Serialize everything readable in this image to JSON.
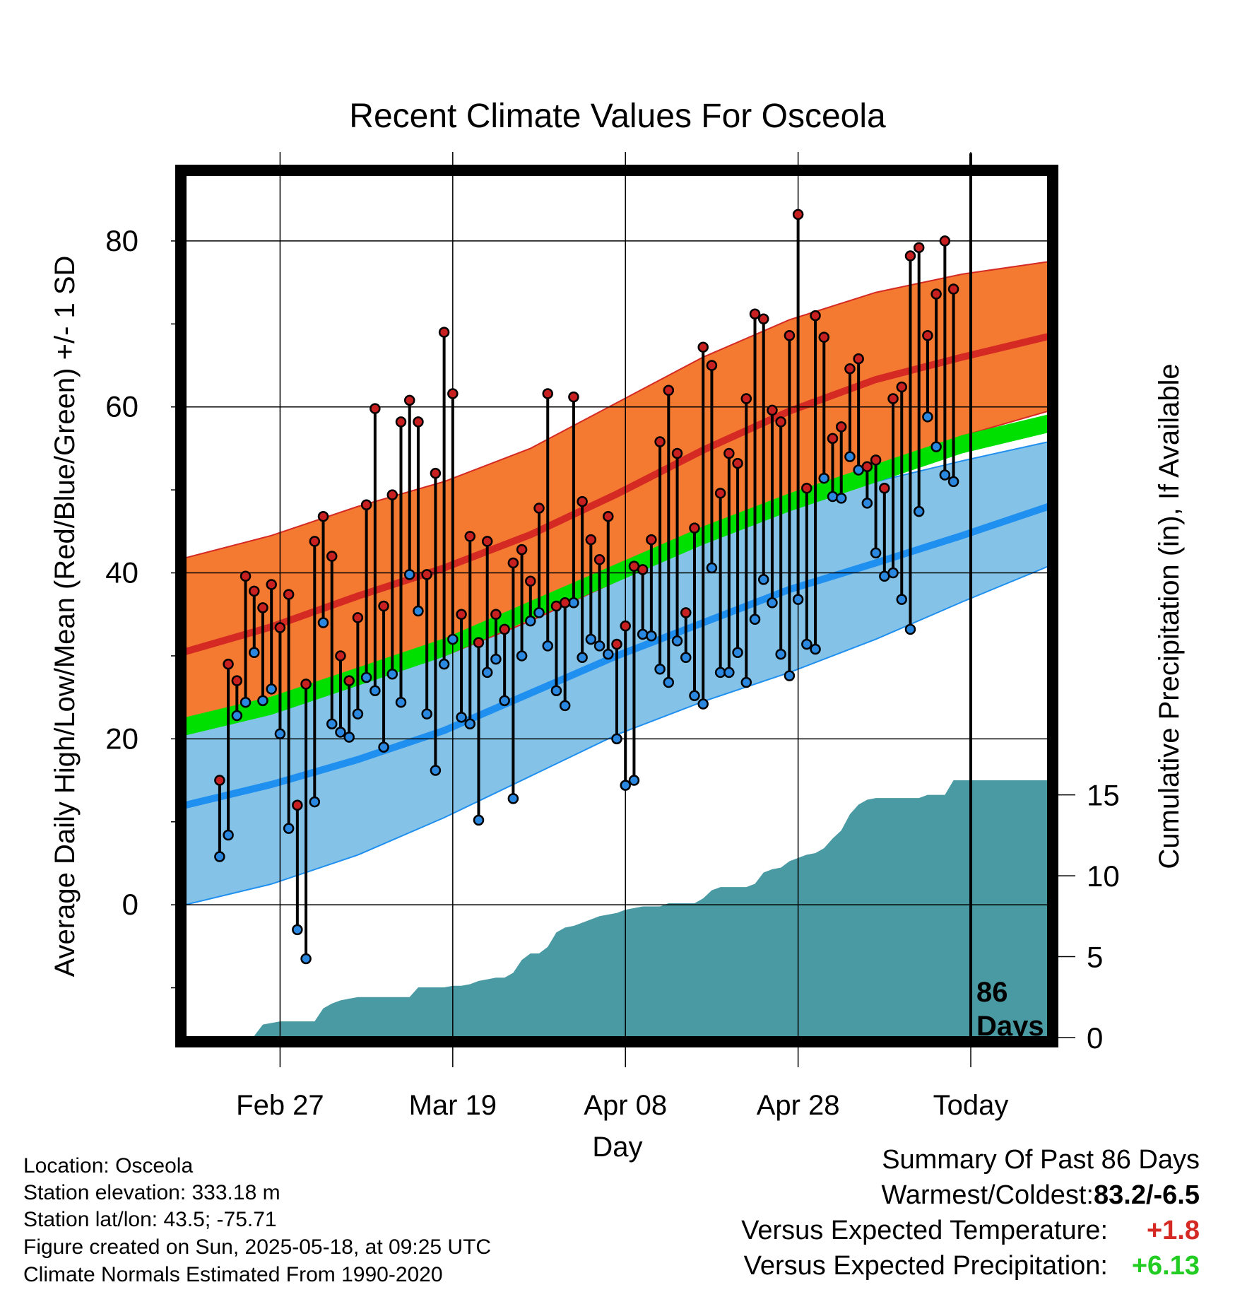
{
  "title": "Recent Climate Values For Osceola",
  "colors": {
    "high_band": "#f47a32",
    "high_band_edge": "#d42a23",
    "high_mean_line": "#d42a23",
    "low_band": "#84c2e7",
    "low_band_edge": "#1f8ff0",
    "low_mean_line": "#1f8ff0",
    "mean_band": "#00e000",
    "overlap_band": "#9a1414",
    "precip_area": "#4a9aa4",
    "high_marker": "#c82020",
    "low_marker": "#2a88e0",
    "warmest_coldest_value": "#000000",
    "temp_departure": "#d42a23",
    "precip_departure": "#22cc22"
  },
  "chart_data": {
    "type": "line",
    "title": "Recent Climate Values For Osceola",
    "xlabel": "Day",
    "ylabel": "Average Daily High/Low/Mean (Red/Blue/Green) +/- 1 SD",
    "y2label": "Cumulative Precipitation (in), If Available",
    "x_ticks": [
      "Feb 27",
      "Mar 19",
      "Apr 08",
      "Apr 28",
      "Today"
    ],
    "x_tick_days": [
      11,
      31,
      51,
      71,
      91
    ],
    "y_ticks": [
      0,
      20,
      40,
      60,
      80
    ],
    "ylim": [
      -16,
      88
    ],
    "y2_ticks": [
      0,
      5,
      10,
      15
    ],
    "y2lim": [
      0,
      16
    ],
    "xlim": [
      0,
      100
    ],
    "today_day": 91,
    "days_label": "86\nDays",
    "grid": true,
    "normals": {
      "days": [
        0,
        10,
        20,
        30,
        40,
        50,
        60,
        70,
        80,
        90,
        100
      ],
      "high_mean": [
        30.5,
        33.5,
        37.2,
        40.6,
        44.6,
        49.5,
        54.8,
        59.5,
        63.3,
        66.0,
        68.5
      ],
      "high_upper": [
        41.8,
        44.5,
        48.0,
        51.0,
        55.0,
        60.5,
        66.0,
        70.5,
        73.8,
        76.0,
        77.5
      ],
      "high_lower": [
        21.0,
        24.0,
        27.0,
        30.0,
        34.2,
        39.0,
        44.0,
        48.5,
        52.5,
        56.5,
        59.5
      ],
      "low_mean": [
        12.0,
        14.5,
        17.5,
        21.0,
        25.5,
        30.0,
        34.0,
        38.0,
        41.2,
        44.5,
        48.0
      ],
      "low_upper": [
        20.5,
        23.5,
        27.5,
        32.0,
        36.5,
        40.5,
        44.5,
        48.2,
        51.0,
        53.5,
        55.8
      ],
      "low_lower": [
        0.0,
        2.5,
        6.0,
        10.5,
        15.5,
        20.5,
        24.5,
        28.0,
        32.0,
        36.5,
        40.8
      ],
      "mean": [
        21.5,
        24.0,
        27.5,
        31.0,
        35.5,
        40.0,
        44.5,
        48.5,
        52.0,
        55.5,
        58.0
      ]
    },
    "series": [
      {
        "name": "High",
        "x": [
          4,
          5,
          6,
          7,
          8,
          9,
          10,
          11,
          12,
          13,
          14,
          15,
          16,
          17,
          18,
          19,
          20,
          21,
          22,
          23,
          24,
          25,
          26,
          27,
          28,
          29,
          30,
          31,
          32,
          33,
          34,
          35,
          36,
          37,
          38,
          39,
          40,
          41,
          42,
          43,
          44,
          45,
          46,
          47,
          48,
          49,
          50,
          51,
          52,
          53,
          54,
          55,
          56,
          57,
          58,
          59,
          60,
          61,
          62,
          63,
          64,
          65,
          66,
          67,
          68,
          69,
          70,
          71,
          72,
          73,
          74,
          75,
          76,
          77,
          78,
          79,
          80,
          81,
          82,
          83,
          84,
          85,
          86,
          87,
          88,
          89,
          90
        ],
        "values": [
          15.0,
          29.0,
          27.0,
          39.6,
          37.8,
          35.8,
          38.6,
          33.4,
          37.4,
          12.0,
          26.6,
          43.8,
          46.8,
          42.0,
          30.0,
          27.0,
          34.6,
          48.2,
          59.8,
          36.0,
          49.4,
          58.2,
          60.8,
          58.2,
          39.8,
          52.0,
          69.0,
          61.6,
          35.0,
          44.4,
          31.6,
          43.8,
          35.0,
          33.2,
          41.2,
          42.8,
          39.0,
          47.8,
          61.6,
          36.0,
          36.4,
          61.2,
          48.6,
          44.0,
          41.6,
          46.8,
          31.4,
          33.6,
          40.8,
          40.4,
          44.0,
          55.8,
          62.0,
          54.4,
          35.2,
          45.4,
          67.2,
          65.0,
          49.6,
          54.4,
          53.2,
          61.0,
          71.2,
          70.6,
          59.6,
          58.2,
          68.6,
          83.2,
          50.2,
          71.0,
          68.4,
          56.2,
          57.6,
          64.6,
          65.8,
          52.8,
          53.6,
          50.2,
          61.0,
          62.4,
          78.2,
          79.2,
          68.6,
          73.6,
          80.0,
          74.2,
          null
        ]
      },
      {
        "name": "Low",
        "x": [
          4,
          5,
          6,
          7,
          8,
          9,
          10,
          11,
          12,
          13,
          14,
          15,
          16,
          17,
          18,
          19,
          20,
          21,
          22,
          23,
          24,
          25,
          26,
          27,
          28,
          29,
          30,
          31,
          32,
          33,
          34,
          35,
          36,
          37,
          38,
          39,
          40,
          41,
          42,
          43,
          44,
          45,
          46,
          47,
          48,
          49,
          50,
          51,
          52,
          53,
          54,
          55,
          56,
          57,
          58,
          59,
          60,
          61,
          62,
          63,
          64,
          65,
          66,
          67,
          68,
          69,
          70,
          71,
          72,
          73,
          74,
          75,
          76,
          77,
          78,
          79,
          80,
          81,
          82,
          83,
          84,
          85,
          86,
          87,
          88,
          89,
          90
        ],
        "values": [
          5.8,
          8.4,
          22.8,
          24.4,
          30.4,
          24.6,
          26.0,
          20.6,
          9.2,
          -3.0,
          -6.5,
          12.4,
          34.0,
          21.8,
          20.8,
          20.2,
          23.0,
          27.4,
          25.8,
          19.0,
          27.8,
          24.4,
          39.8,
          35.4,
          23.0,
          16.2,
          29.0,
          32.0,
          22.6,
          21.8,
          10.2,
          28.0,
          29.6,
          24.6,
          12.8,
          30.0,
          34.2,
          35.2,
          31.2,
          25.8,
          24.0,
          36.4,
          29.8,
          32.0,
          31.2,
          30.2,
          20.0,
          14.4,
          15.0,
          32.6,
          32.4,
          28.4,
          26.8,
          31.8,
          29.8,
          25.2,
          24.2,
          40.6,
          28.0,
          28.0,
          30.4,
          26.8,
          34.4,
          39.2,
          36.4,
          30.2,
          27.6,
          36.8,
          31.4,
          30.8,
          51.4,
          49.2,
          49.0,
          54.0,
          52.4,
          48.4,
          42.4,
          39.6,
          40.0,
          36.8,
          33.2,
          47.4,
          58.8,
          55.2,
          51.8,
          51.0,
          null
        ]
      }
    ],
    "precipitation": {
      "name": "Cumulative Precipitation",
      "days": [
        0,
        7,
        8,
        9,
        10,
        11,
        13,
        14,
        15,
        16,
        17,
        18,
        19,
        20,
        21,
        22,
        23,
        24,
        25,
        26,
        27,
        28,
        29,
        30,
        31,
        32,
        33,
        34,
        35,
        36,
        37,
        38,
        39,
        40,
        41,
        42,
        43,
        44,
        45,
        46,
        47,
        48,
        49,
        50,
        51,
        52,
        53,
        54,
        55,
        56,
        57,
        58,
        59,
        60,
        61,
        62,
        63,
        64,
        65,
        66,
        67,
        68,
        69,
        70,
        71,
        72,
        73,
        74,
        75,
        76,
        77,
        78,
        79,
        80,
        81,
        82,
        83,
        84,
        85,
        86,
        87,
        88,
        89,
        90,
        91,
        100
      ],
      "values": [
        0,
        0,
        0.1,
        0.8,
        0.9,
        1.0,
        1.0,
        1.0,
        1.0,
        1.8,
        2.1,
        2.3,
        2.4,
        2.5,
        2.5,
        2.5,
        2.5,
        2.5,
        2.5,
        2.5,
        3.1,
        3.1,
        3.1,
        3.1,
        3.2,
        3.2,
        3.3,
        3.5,
        3.6,
        3.7,
        3.7,
        4.0,
        4.8,
        5.2,
        5.2,
        5.6,
        6.5,
        6.8,
        6.9,
        7.1,
        7.3,
        7.5,
        7.6,
        7.7,
        7.9,
        8.0,
        8.1,
        8.1,
        8.1,
        8.3,
        8.3,
        8.3,
        8.3,
        8.6,
        9.1,
        9.3,
        9.3,
        9.3,
        9.3,
        9.5,
        10.2,
        10.4,
        10.5,
        10.9,
        11.1,
        11.3,
        11.4,
        11.7,
        12.3,
        12.8,
        13.8,
        14.4,
        14.7,
        14.8,
        14.8,
        14.8,
        14.8,
        14.8,
        14.8,
        15.0,
        15.0,
        15.0,
        15.9,
        15.9,
        15.9,
        15.9
      ]
    }
  },
  "footer_left": {
    "location": "Location: Osceola",
    "elevation": "Station elevation: 333.18 m",
    "latlon": "Station lat/lon: 43.5; -75.71",
    "created": "Figure created on Sun, 2025-05-18, at 09:25 UTC",
    "normals_source": "Climate Normals Estimated From 1990-2020"
  },
  "summary": {
    "heading": "Summary Of Past 86 Days",
    "warmest_coldest_label": "Warmest/Coldest:",
    "warmest_coldest_value": "83.2/-6.5",
    "temp_label": "Versus Expected Temperature:",
    "temp_value": "+1.8",
    "precip_label": "Versus Expected Precipitation:",
    "precip_value": "+6.13"
  }
}
